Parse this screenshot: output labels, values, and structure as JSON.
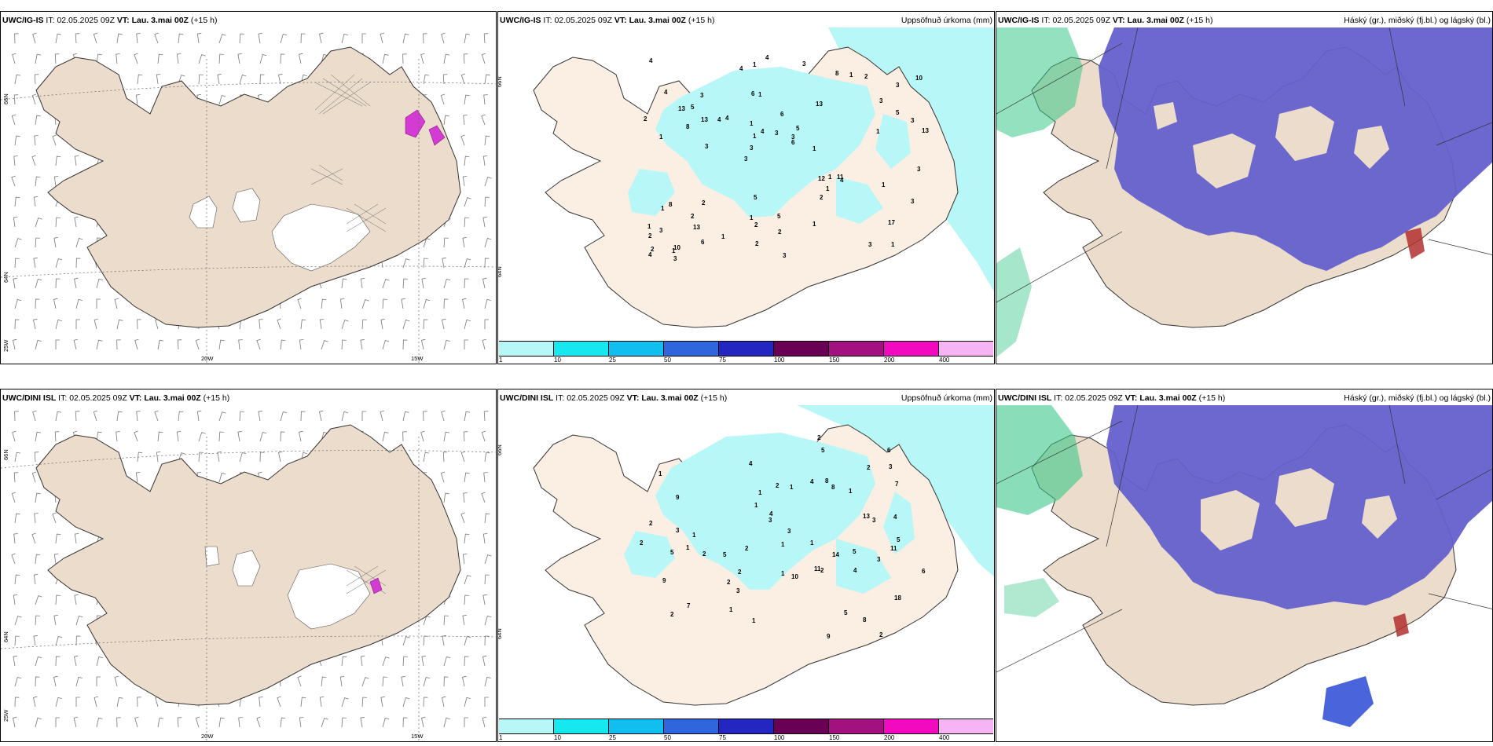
{
  "rows": [
    {
      "model": "UWC/IG-IS",
      "run_label": "IT:",
      "run_time": "02.05.2025 09Z",
      "valid_label": "VT:",
      "valid_time": "Lau. 3.mai 00Z",
      "lead": "(+15 h)"
    },
    {
      "model": "UWC/DINI ISL",
      "run_label": "IT:",
      "run_time": "02.05.2025 09Z",
      "valid_label": "VT:",
      "valid_time": "Lau. 3.mai 00Z",
      "lead": "(+15 h)"
    }
  ],
  "precip_title": "Uppsöfnuð úrkoma (mm)",
  "cloud_title": "Háský (gr.), miðský (fj.bl.) og lágský (bl.)",
  "axis_labels": {
    "lat66": "66N",
    "lat64": "64N",
    "lon25": "25W",
    "lon20": "20W",
    "lon15": "15W"
  },
  "colorbar": {
    "ticks": [
      "1",
      "10",
      "25",
      "50",
      "75",
      "100",
      "150",
      "200",
      "400"
    ],
    "colors": [
      "#b8f7f7",
      "#15e8ee",
      "#10bff0",
      "#2f66dd",
      "#2326c0",
      "#6a0054",
      "#a3107f",
      "#f20ac0",
      "#f6b4f4"
    ]
  },
  "colors": {
    "land": "#ecdccb",
    "land_precip": "#fbeee3",
    "precip_light": "#b8f7f7",
    "cloud_high": "#6460cc",
    "cloud_mid": "#2a49d6",
    "cloud_low": "#3ac88a",
    "snow_purple": "#d23cd2"
  },
  "precip_numbers_top": [
    "1",
    "1",
    "3",
    "3",
    "13",
    "10",
    "6",
    "6",
    "8",
    "4",
    "2",
    "13",
    "1",
    "5",
    "4",
    "4",
    "1",
    "13",
    "12",
    "5",
    "3",
    "1",
    "1",
    "3",
    "8",
    "2",
    "3",
    "17",
    "11",
    "3",
    "4",
    "8",
    "2",
    "6",
    "3",
    "3",
    "2",
    "2",
    "6",
    "1",
    "3",
    "10",
    "1",
    "1",
    "2",
    "3",
    "4",
    "5",
    "2",
    "4",
    "3",
    "2",
    "5",
    "1",
    "1",
    "3",
    "4",
    "4",
    "3",
    "5",
    "1",
    "1",
    "13",
    "1",
    "4",
    "13",
    "3",
    "1",
    "2",
    "3",
    "3",
    "1",
    "1",
    "2",
    "1"
  ],
  "precip_numbers_bottom": [
    "2",
    "1",
    "11",
    "1",
    "18",
    "9",
    "7",
    "5",
    "1",
    "2",
    "8",
    "8",
    "3",
    "4",
    "1",
    "9",
    "5",
    "3",
    "2",
    "2",
    "6",
    "1",
    "13",
    "6",
    "5",
    "3",
    "2",
    "1",
    "3",
    "3",
    "2",
    "5",
    "2",
    "8",
    "1",
    "3",
    "11",
    "5",
    "2",
    "9",
    "2",
    "10",
    "1",
    "2",
    "2",
    "1",
    "7",
    "5",
    "4",
    "1",
    "14",
    "4",
    "4",
    "3",
    "1",
    "2",
    "1",
    "4"
  ]
}
